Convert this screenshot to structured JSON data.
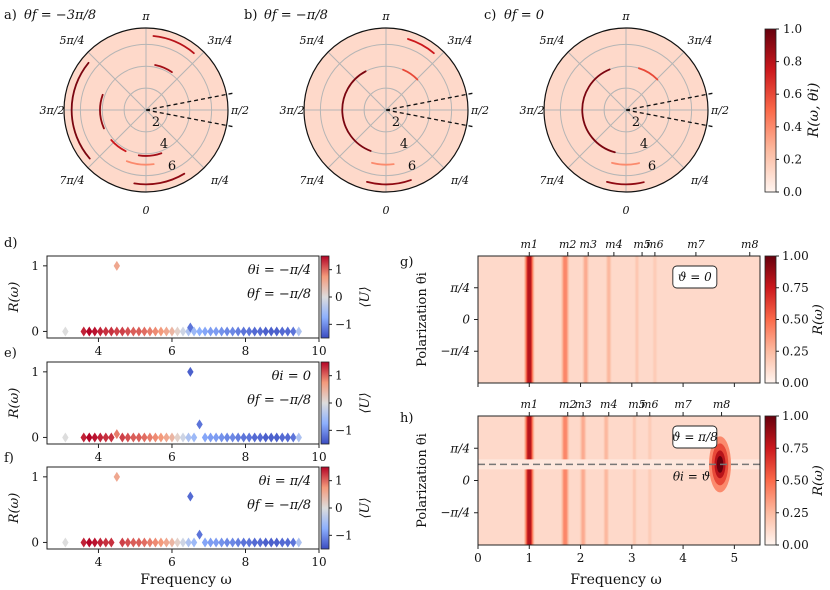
{
  "chart_data": [
    {
      "type": "polar",
      "panel": "a",
      "panel_label": "a)",
      "title_text": "θf = −3π/8",
      "angle_labels": [
        "π",
        "3π/4",
        "π/2",
        "π/4",
        "0",
        "7π/4",
        "3π/2",
        "5π/4"
      ],
      "radial_ticks": [
        "2",
        "4",
        "6"
      ],
      "rings": [
        {
          "r": 4.2,
          "theta_start": 0.2,
          "theta_end": 0.6,
          "intensity": 0.85
        },
        {
          "r": 4.2,
          "theta_start": 2.8,
          "theta_end": 3.3,
          "intensity": 0.85
        },
        {
          "r": 4.2,
          "theta_start": 3.6,
          "theta_end": 4.0,
          "intensity": 0.75
        },
        {
          "r": 4.2,
          "theta_start": 4.3,
          "theta_end": 5.05,
          "intensity": 0.9
        },
        {
          "r": 6.8,
          "theta_start": 2.6,
          "theta_end": 3.3,
          "intensity": 0.9
        },
        {
          "r": 6.8,
          "theta_start": 4.0,
          "theta_end": 5.4,
          "intensity": 0.95
        },
        {
          "r": 6.8,
          "theta_start": 0.1,
          "theta_end": 0.7,
          "intensity": 0.8
        },
        {
          "r": 5.0,
          "theta_start": 3.0,
          "theta_end": 3.5,
          "intensity": 0.4
        }
      ]
    },
    {
      "type": "polar",
      "panel": "b",
      "panel_label": "b)",
      "title_text": "θf = −π/8",
      "angle_labels": [
        "π",
        "3π/4",
        "π/2",
        "π/4",
        "0",
        "7π/4",
        "3π/2",
        "5π/4"
      ],
      "radial_ticks": [
        "2",
        "4",
        "6"
      ],
      "rings": [
        {
          "r": 4.0,
          "theta_start": 3.5,
          "theta_end": 5.8,
          "intensity": 0.95
        },
        {
          "r": 6.8,
          "theta_start": 2.8,
          "theta_end": 3.4,
          "intensity": 0.9
        },
        {
          "r": 6.8,
          "theta_start": 0.3,
          "theta_end": 0.7,
          "intensity": 0.75
        },
        {
          "r": 4.0,
          "theta_start": 0.4,
          "theta_end": 0.8,
          "intensity": 0.6
        },
        {
          "r": 5.0,
          "theta_start": 3.0,
          "theta_end": 3.4,
          "intensity": 0.4
        }
      ]
    },
    {
      "type": "polar",
      "panel": "c",
      "panel_label": "c)",
      "title_text": "θf = 0",
      "angle_labels": [
        "π",
        "3π/4",
        "π/2",
        "π/4",
        "0",
        "7π/4",
        "3π/2",
        "5π/4"
      ],
      "radial_ticks": [
        "2",
        "4",
        "6"
      ],
      "rings": [
        {
          "r": 4.0,
          "theta_start": 3.4,
          "theta_end": 5.9,
          "intensity": 0.95
        },
        {
          "r": 6.8,
          "theta_start": 2.9,
          "theta_end": 3.4,
          "intensity": 0.9
        },
        {
          "r": 4.0,
          "theta_start": 0.3,
          "theta_end": 0.8,
          "intensity": 0.6
        },
        {
          "r": 5.0,
          "theta_start": 2.9,
          "theta_end": 3.4,
          "intensity": 0.4
        }
      ]
    },
    {
      "type": "colorbar",
      "for": [
        "a",
        "b",
        "c"
      ],
      "label": "R(ω, θi)",
      "range": [
        0.0,
        1.0
      ],
      "ticks": [
        "0.0",
        "0.2",
        "0.4",
        "0.6",
        "0.8",
        "1.0"
      ]
    },
    {
      "type": "scatter",
      "panel": "d",
      "panel_label": "d)",
      "ylabel": "R(ω)",
      "xlim": [
        2.6,
        10
      ],
      "ylim": [
        -0.1,
        1.15
      ],
      "xticks": [
        "4",
        "6",
        "8",
        "10"
      ],
      "yticks": [
        "0",
        "1"
      ],
      "annotations": [
        "θi = −π/4",
        "θf = −π/8"
      ],
      "colorbar_label": "⟨U⟩",
      "colorbar_ticks": [
        "1",
        "0",
        "−1"
      ],
      "points": [
        {
          "x": 3.1,
          "y": 0,
          "u": 0.0
        },
        {
          "x": 3.6,
          "y": 0,
          "u": 0.9
        },
        {
          "x": 3.75,
          "y": 0,
          "u": 1.0
        },
        {
          "x": 3.9,
          "y": 0,
          "u": 0.95
        },
        {
          "x": 4.05,
          "y": 0,
          "u": 0.9
        },
        {
          "x": 4.2,
          "y": 0,
          "u": 0.85
        },
        {
          "x": 4.35,
          "y": 0,
          "u": 0.85
        },
        {
          "x": 4.5,
          "y": 0,
          "u": 0.8
        },
        {
          "x": 4.5,
          "y": 1.0,
          "u": 0.4
        },
        {
          "x": 4.65,
          "y": 0,
          "u": 0.8
        },
        {
          "x": 4.8,
          "y": 0,
          "u": 0.75
        },
        {
          "x": 4.95,
          "y": 0,
          "u": 0.7
        },
        {
          "x": 5.1,
          "y": 0,
          "u": 0.7
        },
        {
          "x": 5.25,
          "y": 0,
          "u": 0.65
        },
        {
          "x": 5.4,
          "y": 0,
          "u": 0.6
        },
        {
          "x": 5.55,
          "y": 0,
          "u": 0.55
        },
        {
          "x": 5.7,
          "y": 0,
          "u": 0.5
        },
        {
          "x": 5.85,
          "y": 0,
          "u": 0.4
        },
        {
          "x": 6.0,
          "y": 0,
          "u": 0.3
        },
        {
          "x": 6.15,
          "y": 0,
          "u": 0.1
        },
        {
          "x": 6.3,
          "y": 0,
          "u": -0.1
        },
        {
          "x": 6.45,
          "y": 0,
          "u": -0.3
        },
        {
          "x": 6.5,
          "y": 0.06,
          "u": -0.8
        },
        {
          "x": 6.6,
          "y": 0,
          "u": -0.4
        },
        {
          "x": 6.75,
          "y": 0,
          "u": -0.5
        },
        {
          "x": 6.9,
          "y": 0,
          "u": -0.55
        },
        {
          "x": 7.05,
          "y": 0,
          "u": -0.6
        },
        {
          "x": 7.2,
          "y": 0,
          "u": -0.6
        },
        {
          "x": 7.35,
          "y": 0,
          "u": -0.65
        },
        {
          "x": 7.5,
          "y": 0,
          "u": -0.7
        },
        {
          "x": 7.65,
          "y": 0,
          "u": -0.7
        },
        {
          "x": 7.8,
          "y": 0,
          "u": -0.75
        },
        {
          "x": 7.95,
          "y": 0,
          "u": -0.8
        },
        {
          "x": 8.1,
          "y": 0,
          "u": -0.8
        },
        {
          "x": 8.25,
          "y": 0,
          "u": -0.85
        },
        {
          "x": 8.4,
          "y": 0,
          "u": -0.85
        },
        {
          "x": 8.55,
          "y": 0,
          "u": -0.9
        },
        {
          "x": 8.7,
          "y": 0,
          "u": -0.9
        },
        {
          "x": 8.85,
          "y": 0,
          "u": -0.9
        },
        {
          "x": 9.0,
          "y": 0,
          "u": -0.85
        },
        {
          "x": 9.15,
          "y": 0,
          "u": -0.85
        },
        {
          "x": 9.3,
          "y": 0,
          "u": -0.8
        },
        {
          "x": 9.45,
          "y": 0,
          "u": -0.3
        }
      ]
    },
    {
      "type": "scatter",
      "panel": "e",
      "panel_label": "e)",
      "ylabel": "R(ω)",
      "xlim": [
        2.6,
        10
      ],
      "ylim": [
        -0.1,
        1.15
      ],
      "xticks": [
        "4",
        "6",
        "8",
        "10"
      ],
      "yticks": [
        "0",
        "1"
      ],
      "annotations": [
        "θi = 0",
        "θf = −π/8"
      ],
      "colorbar_label": "⟨U⟩",
      "colorbar_ticks": [
        "1",
        "0",
        "−1"
      ],
      "points": [
        {
          "x": 3.1,
          "y": 0,
          "u": 0.0
        },
        {
          "x": 3.6,
          "y": 0,
          "u": 0.9
        },
        {
          "x": 3.75,
          "y": 0,
          "u": 1.0
        },
        {
          "x": 3.9,
          "y": 0,
          "u": 0.95
        },
        {
          "x": 4.05,
          "y": 0,
          "u": 0.9
        },
        {
          "x": 4.2,
          "y": 0,
          "u": 0.85
        },
        {
          "x": 4.35,
          "y": 0,
          "u": 0.85
        },
        {
          "x": 4.5,
          "y": 0.05,
          "u": 0.6
        },
        {
          "x": 4.65,
          "y": 0,
          "u": 0.8
        },
        {
          "x": 4.8,
          "y": 0,
          "u": 0.75
        },
        {
          "x": 4.95,
          "y": 0,
          "u": 0.7
        },
        {
          "x": 5.1,
          "y": 0,
          "u": 0.7
        },
        {
          "x": 5.25,
          "y": 0,
          "u": 0.65
        },
        {
          "x": 5.4,
          "y": 0,
          "u": 0.6
        },
        {
          "x": 5.55,
          "y": 0,
          "u": 0.55
        },
        {
          "x": 5.7,
          "y": 0,
          "u": 0.5
        },
        {
          "x": 5.85,
          "y": 0,
          "u": 0.4
        },
        {
          "x": 6.0,
          "y": 0,
          "u": 0.3
        },
        {
          "x": 6.15,
          "y": 0,
          "u": 0.1
        },
        {
          "x": 6.3,
          "y": 0,
          "u": -0.1
        },
        {
          "x": 6.45,
          "y": 0,
          "u": -0.3
        },
        {
          "x": 6.5,
          "y": 1.0,
          "u": -0.9
        },
        {
          "x": 6.6,
          "y": 0,
          "u": -0.4
        },
        {
          "x": 6.75,
          "y": 0.2,
          "u": -0.8
        },
        {
          "x": 6.9,
          "y": 0,
          "u": -0.55
        },
        {
          "x": 7.05,
          "y": 0,
          "u": -0.6
        },
        {
          "x": 7.2,
          "y": 0,
          "u": -0.6
        },
        {
          "x": 7.35,
          "y": 0,
          "u": -0.65
        },
        {
          "x": 7.5,
          "y": 0,
          "u": -0.7
        },
        {
          "x": 7.65,
          "y": 0,
          "u": -0.7
        },
        {
          "x": 7.8,
          "y": 0,
          "u": -0.75
        },
        {
          "x": 7.95,
          "y": 0,
          "u": -0.8
        },
        {
          "x": 8.1,
          "y": 0,
          "u": -0.8
        },
        {
          "x": 8.25,
          "y": 0,
          "u": -0.85
        },
        {
          "x": 8.4,
          "y": 0,
          "u": -0.85
        },
        {
          "x": 8.55,
          "y": 0,
          "u": -0.9
        },
        {
          "x": 8.7,
          "y": 0,
          "u": -0.9
        },
        {
          "x": 8.85,
          "y": 0,
          "u": -0.9
        },
        {
          "x": 9.0,
          "y": 0,
          "u": -0.85
        },
        {
          "x": 9.15,
          "y": 0,
          "u": -0.85
        },
        {
          "x": 9.3,
          "y": 0,
          "u": -0.8
        },
        {
          "x": 9.45,
          "y": 0,
          "u": -0.3
        }
      ]
    },
    {
      "type": "scatter",
      "panel": "f",
      "panel_label": "f)",
      "ylabel": "R(ω)",
      "xlabel": "Frequency ω",
      "xlim": [
        2.6,
        10
      ],
      "ylim": [
        -0.1,
        1.15
      ],
      "xticks": [
        "4",
        "6",
        "8",
        "10"
      ],
      "yticks": [
        "0",
        "1"
      ],
      "annotations": [
        "θi = π/4",
        "θf = −π/8"
      ],
      "colorbar_label": "⟨U⟩",
      "colorbar_ticks": [
        "1",
        "0",
        "−1"
      ],
      "points": [
        {
          "x": 3.1,
          "y": 0,
          "u": 0.0
        },
        {
          "x": 3.6,
          "y": 0,
          "u": 0.9
        },
        {
          "x": 3.75,
          "y": 0,
          "u": 1.0
        },
        {
          "x": 3.9,
          "y": 0,
          "u": 0.95
        },
        {
          "x": 4.05,
          "y": 0,
          "u": 0.9
        },
        {
          "x": 4.2,
          "y": 0,
          "u": 0.85
        },
        {
          "x": 4.35,
          "y": 0,
          "u": 0.85
        },
        {
          "x": 4.5,
          "y": 1.0,
          "u": 0.4
        },
        {
          "x": 4.65,
          "y": 0,
          "u": 0.8
        },
        {
          "x": 4.8,
          "y": 0,
          "u": 0.75
        },
        {
          "x": 4.95,
          "y": 0,
          "u": 0.7
        },
        {
          "x": 5.1,
          "y": 0,
          "u": 0.7
        },
        {
          "x": 5.25,
          "y": 0,
          "u": 0.65
        },
        {
          "x": 5.4,
          "y": 0,
          "u": 0.6
        },
        {
          "x": 5.55,
          "y": 0,
          "u": 0.55
        },
        {
          "x": 5.7,
          "y": 0,
          "u": 0.5
        },
        {
          "x": 5.85,
          "y": 0,
          "u": 0.4
        },
        {
          "x": 6.0,
          "y": 0,
          "u": 0.3
        },
        {
          "x": 6.15,
          "y": 0,
          "u": 0.1
        },
        {
          "x": 6.3,
          "y": 0,
          "u": -0.1
        },
        {
          "x": 6.45,
          "y": 0,
          "u": -0.3
        },
        {
          "x": 6.5,
          "y": 0.7,
          "u": -0.85
        },
        {
          "x": 6.6,
          "y": 0,
          "u": -0.4
        },
        {
          "x": 6.75,
          "y": 0.12,
          "u": -0.8
        },
        {
          "x": 6.9,
          "y": 0,
          "u": -0.55
        },
        {
          "x": 7.05,
          "y": 0,
          "u": -0.6
        },
        {
          "x": 7.2,
          "y": 0,
          "u": -0.6
        },
        {
          "x": 7.35,
          "y": 0,
          "u": -0.65
        },
        {
          "x": 7.5,
          "y": 0,
          "u": -0.7
        },
        {
          "x": 7.65,
          "y": 0,
          "u": -0.7
        },
        {
          "x": 7.8,
          "y": 0,
          "u": -0.75
        },
        {
          "x": 7.95,
          "y": 0,
          "u": -0.8
        },
        {
          "x": 8.1,
          "y": 0,
          "u": -0.8
        },
        {
          "x": 8.25,
          "y": 0,
          "u": -0.85
        },
        {
          "x": 8.4,
          "y": 0,
          "u": -0.85
        },
        {
          "x": 8.55,
          "y": 0,
          "u": -0.9
        },
        {
          "x": 8.7,
          "y": 0,
          "u": -0.9
        },
        {
          "x": 8.85,
          "y": 0,
          "u": -0.9
        },
        {
          "x": 9.0,
          "y": 0,
          "u": -0.85
        },
        {
          "x": 9.15,
          "y": 0,
          "u": -0.85
        },
        {
          "x": 9.3,
          "y": 0,
          "u": -0.8
        },
        {
          "x": 9.45,
          "y": 0,
          "u": -0.3
        }
      ]
    },
    {
      "type": "heatmap",
      "panel": "g",
      "panel_label": "g)",
      "ylabel": "Polarization θi",
      "xlim": [
        0,
        5.5
      ],
      "ylim": [
        -1.5708,
        1.5708
      ],
      "yticks": [
        "π/4",
        "0",
        "−π/4"
      ],
      "box_label": "ϑ = 0",
      "mode_labels": [
        {
          "text": "m1",
          "x": 1.0
        },
        {
          "text": "m2",
          "x": 1.75
        },
        {
          "text": "m3",
          "x": 2.15
        },
        {
          "text": "m4",
          "x": 2.65
        },
        {
          "text": "m5",
          "x": 3.2
        },
        {
          "text": "m6",
          "x": 3.45
        },
        {
          "text": "m7",
          "x": 4.25
        },
        {
          "text": "m8",
          "x": 5.3
        }
      ],
      "bands": [
        {
          "x": 1.0,
          "width": 0.12,
          "intensity": 1.0
        },
        {
          "x": 1.7,
          "width": 0.1,
          "intensity": 0.5
        },
        {
          "x": 2.1,
          "width": 0.08,
          "intensity": 0.35
        },
        {
          "x": 2.55,
          "width": 0.07,
          "intensity": 0.3
        },
        {
          "x": 3.1,
          "width": 0.06,
          "intensity": 0.22
        },
        {
          "x": 3.45,
          "width": 0.06,
          "intensity": 0.2
        }
      ],
      "colorbar_label": "R(ω)",
      "colorbar_ticks": [
        "1.00",
        "0.75",
        "0.50",
        "0.25",
        "0.00"
      ]
    },
    {
      "type": "heatmap",
      "panel": "h",
      "panel_label": "h)",
      "ylabel": "Polarization θi",
      "xlabel": "Frequency ω",
      "xlim": [
        0,
        5.5
      ],
      "ylim": [
        -1.5708,
        1.5708
      ],
      "xticks": [
        "0",
        "1",
        "2",
        "3",
        "4",
        "5"
      ],
      "yticks": [
        "π/4",
        "0",
        "−π/4"
      ],
      "box_label": "ϑ = π/8",
      "line_label": "θi = ϑ",
      "line_y": 0.3927,
      "mode_labels": [
        {
          "text": "m1",
          "x": 1.0
        },
        {
          "text": "m2",
          "x": 1.75
        },
        {
          "text": "m3",
          "x": 2.05
        },
        {
          "text": "m4",
          "x": 2.55
        },
        {
          "text": "m5",
          "x": 3.1
        },
        {
          "text": "m6",
          "x": 3.35
        },
        {
          "text": "m7",
          "x": 4.0
        },
        {
          "text": "m8",
          "x": 4.75
        }
      ],
      "bands": [
        {
          "x": 1.0,
          "width": 0.12,
          "intensity": 1.0
        },
        {
          "x": 1.7,
          "width": 0.1,
          "intensity": 0.5
        },
        {
          "x": 2.05,
          "width": 0.08,
          "intensity": 0.35
        },
        {
          "x": 2.5,
          "width": 0.07,
          "intensity": 0.3
        },
        {
          "x": 3.05,
          "width": 0.06,
          "intensity": 0.22
        },
        {
          "x": 3.35,
          "width": 0.06,
          "intensity": 0.2
        }
      ],
      "hotspot": {
        "x": 4.72,
        "y": 0.3927,
        "intensity": 1.0
      },
      "colorbar_label": "R(ω)",
      "colorbar_ticks": [
        "1.00",
        "0.75",
        "0.50",
        "0.25",
        "0.00"
      ]
    }
  ]
}
